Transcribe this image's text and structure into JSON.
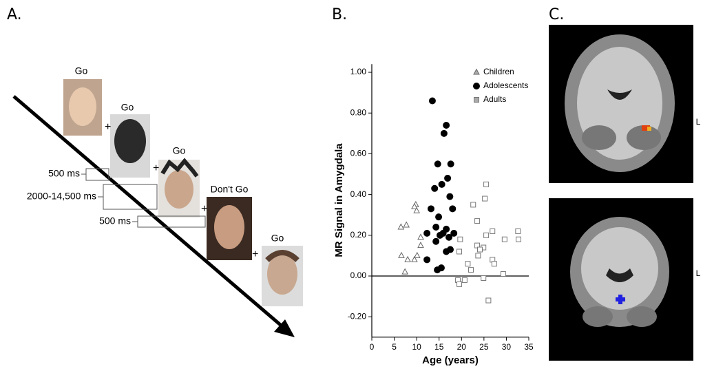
{
  "panel_labels": [
    "A.",
    "B.",
    "C."
  ],
  "task": {
    "trials": [
      "Go",
      "Go",
      "Go",
      "Don't Go",
      "Go"
    ],
    "timings": [
      "500 ms",
      "2000-14,500 ms",
      "500 ms"
    ]
  },
  "brain": {
    "side_labels": [
      "L",
      "L"
    ]
  },
  "chart_data": {
    "type": "scatter",
    "x_label": "Age (years)",
    "y_label": "MR Signal in Amygdala",
    "xlim": [
      0,
      35
    ],
    "xticks": [
      0,
      5,
      10,
      15,
      20,
      25,
      30,
      35
    ],
    "ylim": [
      -0.3,
      1.04
    ],
    "yticks": [
      {
        "value": -0.2,
        "label": "-0.20"
      },
      {
        "value": 0,
        "label": "0.00"
      },
      {
        "value": 0.2,
        "label": "0.20"
      },
      {
        "value": 0.4,
        "label": "0.40"
      },
      {
        "value": 0.6,
        "label": "0.60"
      },
      {
        "value": 0.8,
        "label": "0.80"
      },
      {
        "value": 1.0,
        "label": "1.00"
      }
    ],
    "legend": "top-right",
    "series": [
      {
        "name": "Children",
        "color": "#666666",
        "marker": "triangle",
        "filled": false,
        "x": [
          6.5,
          7.7,
          6.6,
          8.0,
          7.4,
          9.5,
          10.1,
          9.8,
          9.5,
          10.0,
          10.9,
          10.9
        ],
        "values": [
          0.24,
          0.25,
          0.1,
          0.08,
          0.02,
          0.08,
          0.1,
          0.35,
          0.34,
          0.32,
          0.15,
          0.19
        ]
      },
      {
        "name": "Adolescents",
        "color": "#000000",
        "marker": "circle",
        "filled": true,
        "x": [
          13.5,
          16.6,
          16.1,
          14.7,
          17.6,
          16.9,
          14.0,
          15.6,
          17.4,
          18.0,
          13.2,
          14.9,
          14.3,
          16.6,
          18.3,
          15.9,
          15.2,
          12.3,
          14.3,
          17.2,
          17.5,
          16.6,
          12.3,
          14.6,
          15.5
        ],
        "values": [
          0.86,
          0.74,
          0.7,
          0.55,
          0.55,
          0.48,
          0.43,
          0.45,
          0.39,
          0.33,
          0.33,
          0.29,
          0.24,
          0.23,
          0.21,
          0.21,
          0.2,
          0.21,
          0.17,
          0.19,
          0.13,
          0.12,
          0.08,
          0.03,
          0.04
        ]
      },
      {
        "name": "Adults",
        "color": "#777777",
        "marker": "square",
        "filled": false,
        "x": [
          25.5,
          25.2,
          22.6,
          23.5,
          26.9,
          32.6,
          32.7,
          29.6,
          19.7,
          25.5,
          23.5,
          24.9,
          24.1,
          19.5,
          23.7,
          26.9,
          27.3,
          21.4,
          29.3,
          22.1,
          19.2,
          20.7,
          19.5,
          24.9,
          26.0
        ],
        "values": [
          0.45,
          0.38,
          0.35,
          0.27,
          0.22,
          0.22,
          0.18,
          0.18,
          0.18,
          0.2,
          0.15,
          0.14,
          0.13,
          0.12,
          0.1,
          0.08,
          0.06,
          0.06,
          0.01,
          0.03,
          -0.02,
          -0.02,
          -0.04,
          -0.01,
          -0.12
        ]
      }
    ]
  }
}
